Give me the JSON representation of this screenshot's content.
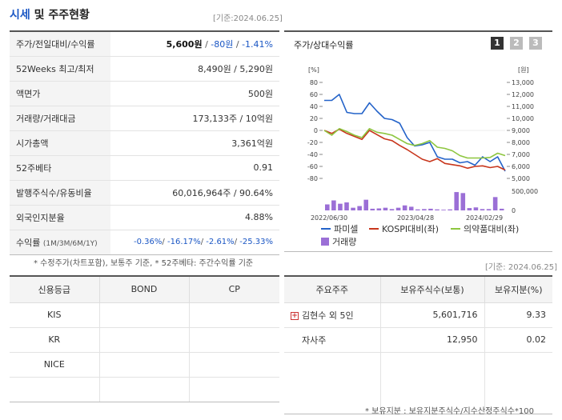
{
  "header": {
    "title_a": "시세",
    "title_b": " 및 주주현황",
    "date": "[기준:2024.06.25]"
  },
  "summary": {
    "price_label": "주가/전일대비/수익률",
    "price": "5,600원",
    "change": "-80원",
    "rate": "-1.41%",
    "w52_label": "52Weeks 최고/최저",
    "w52_value": "8,490원 / 5,290원",
    "par_label": "액면가",
    "par_value": "500원",
    "volume_label": "거래량/거래대금",
    "volume_value": "173,133주 / 10억원",
    "mcap_label": "시가총액",
    "mcap_value": "3,361억원",
    "beta_label": "52주베타",
    "beta_value": "0.91",
    "shares_label": "발행주식수/유동비율",
    "shares_value": "60,016,964주 / 90.64%",
    "foreign_label": "외국인지분율",
    "foreign_value": "4.88%",
    "return_label": "수익률",
    "return_period": "(1M/3M/6M/1Y)",
    "returns": [
      "-0.36%",
      "-16.17%",
      "-2.61%",
      "-25.33%"
    ]
  },
  "notes": {
    "left": "* 수정주가(차트포함), 보통주 기준, * 52주베타: 주간수익률 기준",
    "date2": "[기준: 2024.06.25]",
    "right": "* 보유지분 : 보유지분주식수/지수산정주식수*100"
  },
  "chart_panel": {
    "title": "주가/상대수익률",
    "pages": [
      "1",
      "2",
      "3"
    ]
  },
  "chart_data": {
    "type": "line",
    "left_axis_unit": "[%]",
    "right_axis_unit": "[원]",
    "left_ticks": [
      80,
      60,
      40,
      20,
      0,
      -20,
      -40,
      -60,
      -80
    ],
    "right_ticks": [
      "13,000",
      "12,000",
      "11,000",
      "10,000",
      "9,000",
      "8,000",
      "7,000",
      "6,000",
      "5,000"
    ],
    "volume_ticks": [
      "500,000",
      "0"
    ],
    "x_ticks": [
      "2022/06/30",
      "2023/04/28",
      "2024/02/29"
    ],
    "left_range": [
      -80,
      80
    ],
    "right_range": [
      5000,
      13000
    ],
    "series": [
      {
        "name": "파미셀",
        "color": "#2463c9",
        "axis": "right",
        "values": [
          11500,
          11500,
          12000,
          10500,
          10400,
          10400,
          11300,
          10600,
          10000,
          9900,
          9600,
          8400,
          7700,
          7800,
          8000,
          6800,
          6600,
          6600,
          6300,
          6400,
          6100,
          6800,
          6400,
          6800,
          5600
        ]
      },
      {
        "name": "KOSPI대비(좌)",
        "color": "#c8361c",
        "axis": "left",
        "values": [
          0,
          -5,
          2,
          -5,
          -10,
          -15,
          0,
          -7,
          -14,
          -17,
          -25,
          -32,
          -40,
          -48,
          -52,
          -47,
          -55,
          -57,
          -59,
          -63,
          -60,
          -59,
          -62,
          -60,
          -66
        ]
      },
      {
        "name": "의약품대비(좌)",
        "color": "#8dc63f",
        "axis": "left",
        "values": [
          0,
          -8,
          3,
          -2,
          -8,
          -12,
          3,
          -3,
          -5,
          -8,
          -15,
          -22,
          -25,
          -22,
          -17,
          -28,
          -30,
          -34,
          -42,
          -46,
          -46,
          -46,
          -45,
          -38,
          -42
        ]
      }
    ],
    "volume": {
      "name": "거래량",
      "color": "#9b6fd6",
      "values": [
        180000,
        300000,
        200000,
        240000,
        80000,
        130000,
        320000,
        50000,
        60000,
        80000,
        40000,
        80000,
        150000,
        110000,
        30000,
        40000,
        50000,
        30000,
        20000,
        30000,
        550000,
        520000,
        70000,
        90000,
        40000,
        40000,
        400000,
        50000
      ]
    },
    "volume_max": 600000
  },
  "credit": {
    "headers": [
      "신용등급",
      "BOND",
      "CP"
    ],
    "rows": [
      [
        "KIS",
        "",
        ""
      ],
      [
        "KR",
        "",
        ""
      ],
      [
        "NICE",
        "",
        ""
      ],
      [
        "",
        "",
        ""
      ]
    ]
  },
  "holders": {
    "headers": [
      "주요주주",
      "보유주식수(보통)",
      "보유지분(%)"
    ],
    "rows": [
      {
        "name": "김현수 외 5인",
        "shares": "5,601,716",
        "pct": "9.33",
        "expand": "+"
      },
      {
        "name": "자사주",
        "shares": "12,950",
        "pct": "0.02",
        "expand": ""
      },
      {
        "name": "",
        "shares": "",
        "pct": "",
        "expand": ""
      }
    ]
  }
}
